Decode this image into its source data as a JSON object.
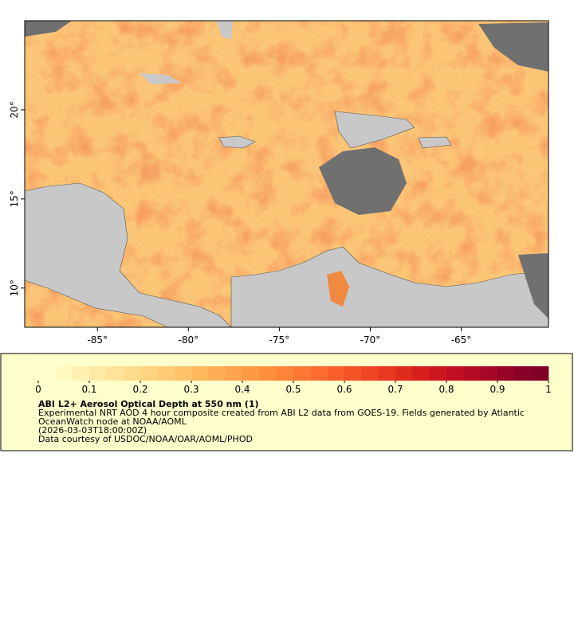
{
  "map": {
    "xlim": [
      -89,
      -60.2
    ],
    "ylim": [
      7.8,
      25
    ],
    "xticks": [
      {
        "value": -85,
        "label": "-85°"
      },
      {
        "value": -80,
        "label": "-80°"
      },
      {
        "value": -75,
        "label": "-75°"
      },
      {
        "value": -70,
        "label": "-70°"
      },
      {
        "value": -65,
        "label": "-65°"
      }
    ],
    "yticks": [
      {
        "value": 10,
        "label": "10°"
      },
      {
        "value": 15,
        "label": "15°"
      },
      {
        "value": 20,
        "label": "20°"
      }
    ]
  },
  "colorbar": {
    "ticks": [
      0,
      0.1,
      0.2,
      0.3,
      0.4,
      0.5,
      0.6,
      0.7,
      0.8,
      0.9,
      1
    ],
    "colors": [
      "#ffffcc",
      "#fff8bf",
      "#fff1b2",
      "#ffeaa5",
      "#fee398",
      "#fedc8b",
      "#fed47f",
      "#fecc74",
      "#fec369",
      "#feb95f",
      "#feaf55",
      "#fea44c",
      "#fd9a44",
      "#fd8f3d",
      "#fd8438",
      "#fc7834",
      "#fc6c30",
      "#fb5f2c",
      "#f55228",
      "#ef4524",
      "#e83821",
      "#e02b1f",
      "#d7201e",
      "#cd171f",
      "#c11021",
      "#b40b24",
      "#a50726",
      "#960426",
      "#880227",
      "#800026"
    ]
  },
  "legend": {
    "title": "ABI L2+ Aerosol Optical Depth at 550 nm (1)",
    "lines": [
      "Experimental NRT AOD 4 hour composite created from ABI L2 data from GOES-19. Fields generated by Atlantic",
      "OceanWatch node at NOAA/AOML",
      "(2026-03-03T18:00:00Z)",
      "Data courtesy of USDOC/NOAA/OAR/AOML/PHOD"
    ]
  }
}
